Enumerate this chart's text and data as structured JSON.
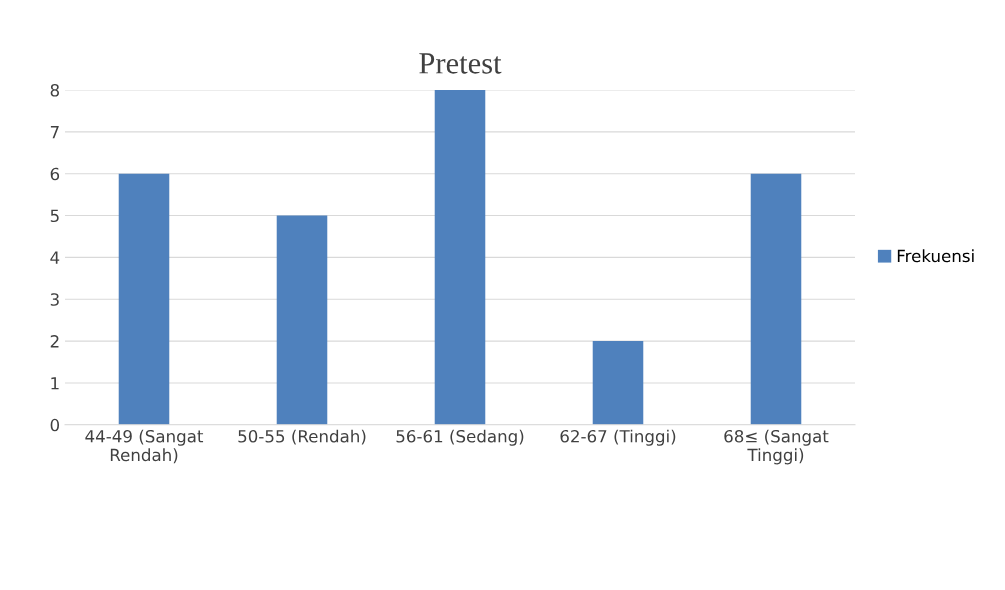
{
  "chart_data": {
    "type": "bar",
    "title": "Pretest",
    "categories": [
      "44-49 (Sangat\nRendah)",
      "50-55 (Rendah)",
      "56-61 (Sedang)",
      "62-67 (Tinggi)",
      "68≤ (Sangat\nTinggi)"
    ],
    "series": [
      {
        "name": "Frekuensi",
        "color": "#4f81bd",
        "values": [
          6,
          5,
          8,
          2,
          6
        ]
      }
    ],
    "ylim": [
      0,
      8
    ],
    "yticks": [
      0,
      1,
      2,
      3,
      4,
      5,
      6,
      7,
      8
    ],
    "grid": "y",
    "legend": "right"
  }
}
